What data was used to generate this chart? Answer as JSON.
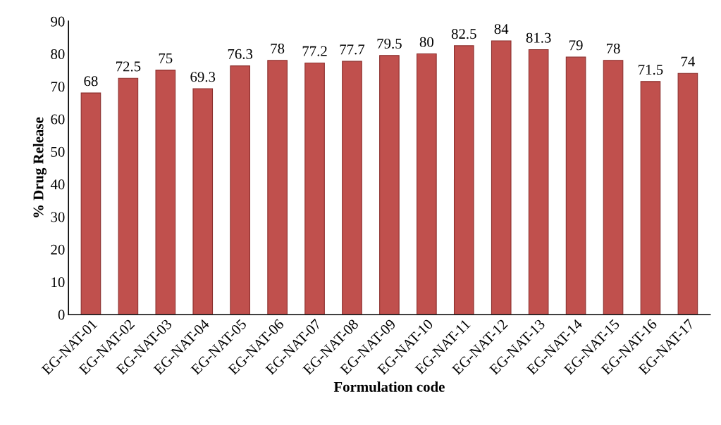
{
  "chart_data": {
    "type": "bar",
    "xlabel": "Formulation code",
    "ylabel": "% Drug Release",
    "categories": [
      "EG-NAT-01",
      "EG-NAT-02",
      "EG-NAT-03",
      "EG-NAT-04",
      "EG-NAT-05",
      "EG-NAT-06",
      "EG-NAT-07",
      "EG-NAT-08",
      "EG-NAT-09",
      "EG-NAT-10",
      "EG-NAT-11",
      "EG-NAT-12",
      "EG-NAT-13",
      "EG-NAT-14",
      "EG-NAT-15",
      "EG-NAT-16",
      "EG-NAT-17"
    ],
    "values": [
      68,
      72.5,
      75,
      69.3,
      76.3,
      78,
      77.2,
      77.7,
      79.5,
      80,
      82.5,
      84,
      81.3,
      79,
      78,
      71.5,
      74
    ],
    "color": "#c0504d",
    "ylim": [
      0,
      90
    ],
    "yticks": [
      0,
      10,
      20,
      30,
      40,
      50,
      60,
      70,
      80,
      90
    ],
    "data_labels": true,
    "grid": false,
    "legend": false
  }
}
